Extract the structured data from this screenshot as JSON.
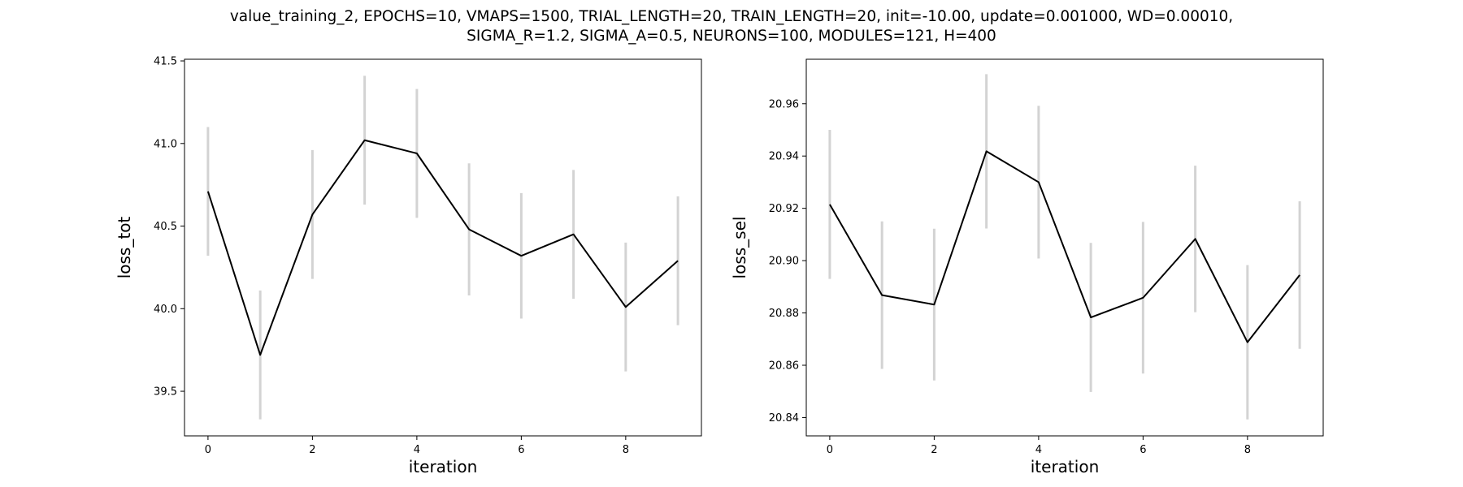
{
  "figure": {
    "title_line1": "value_training_2, EPOCHS=10, VMAPS=1500, TRIAL_LENGTH=20, TRAIN_LENGTH=20, init=-10.00, update=0.001000, WD=0.00010,",
    "title_line2": "SIGMA_R=1.2, SIGMA_A=0.5, NEURONS=100, MODULES=121, H=400"
  },
  "chart_data": [
    {
      "type": "line",
      "xlabel": "iteration",
      "ylabel": "loss_tot",
      "x": [
        0,
        1,
        2,
        3,
        4,
        5,
        6,
        7,
        8,
        9
      ],
      "y": [
        40.71,
        39.72,
        40.57,
        41.02,
        40.94,
        40.48,
        40.32,
        40.45,
        40.01,
        40.29
      ],
      "error": [
        0.39,
        0.39,
        0.39,
        0.39,
        0.39,
        0.4,
        0.38,
        0.39,
        0.39,
        0.39
      ],
      "xlim": [
        -0.45,
        9.45
      ],
      "ylim": [
        39.23,
        41.51
      ],
      "xticks": [
        0,
        2,
        4,
        6,
        8
      ],
      "xtick_labels": [
        "0",
        "2",
        "4",
        "6",
        "8"
      ],
      "yticks": [
        39.5,
        40.0,
        40.5,
        41.0,
        41.5
      ],
      "ytick_labels": [
        "39.5",
        "40.0",
        "40.5",
        "41.0",
        "41.5"
      ],
      "line_color": "#000000",
      "error_color": "#d3d3d3",
      "grid": false
    },
    {
      "type": "line",
      "xlabel": "iteration",
      "ylabel": "loss_sel",
      "x": [
        0,
        1,
        2,
        3,
        4,
        5,
        6,
        7,
        8,
        9
      ],
      "y": [
        20.9215,
        20.8868,
        20.8832,
        20.9418,
        20.93,
        20.8783,
        20.8858,
        20.9083,
        20.8688,
        20.8945
      ],
      "error": [
        0.0285,
        0.0282,
        0.029,
        0.0295,
        0.0292,
        0.0285,
        0.029,
        0.028,
        0.0295,
        0.0282
      ],
      "xlim": [
        -0.45,
        9.45
      ],
      "ylim": [
        20.833,
        20.977
      ],
      "xticks": [
        0,
        2,
        4,
        6,
        8
      ],
      "xtick_labels": [
        "0",
        "2",
        "4",
        "6",
        "8"
      ],
      "yticks": [
        20.84,
        20.86,
        20.88,
        20.9,
        20.92,
        20.94,
        20.96
      ],
      "ytick_labels": [
        "20.84",
        "20.86",
        "20.88",
        "20.90",
        "20.92",
        "20.94",
        "20.96"
      ],
      "line_color": "#000000",
      "error_color": "#d3d3d3",
      "grid": false
    }
  ]
}
